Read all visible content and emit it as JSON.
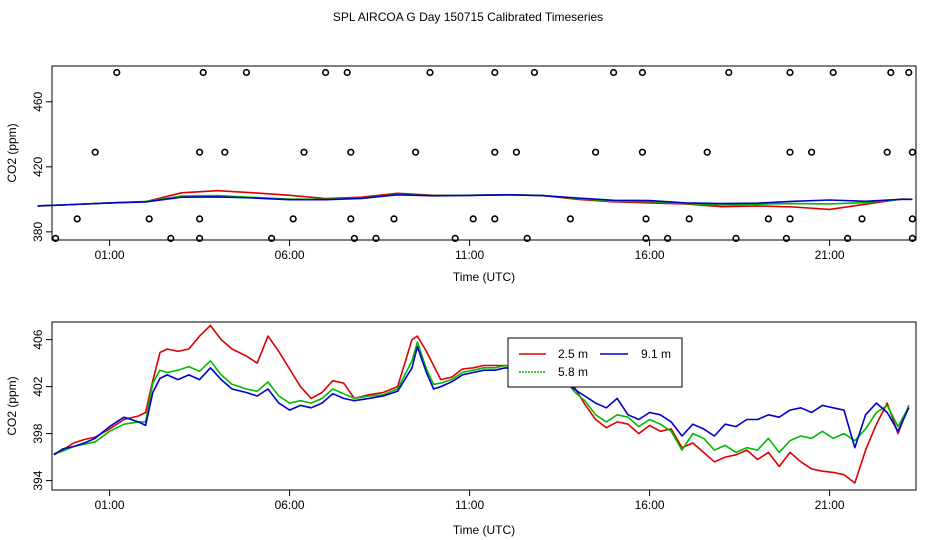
{
  "title": "SPL AIRCOA G  Day 150715  Calibrated Timeseries",
  "colors": {
    "s1": "#dd0000",
    "s2": "#00bb00",
    "s3": "#0000cc"
  },
  "chart_data": [
    {
      "type": "line+scatter",
      "xlabel": "Time (UTC)",
      "ylabel": "CO2 (ppm)",
      "xlim": [
        -0.6,
        23.4
      ],
      "ylim": [
        375,
        482
      ],
      "xticks": [
        1,
        6,
        11,
        16,
        21
      ],
      "xticklabels": [
        "01:00",
        "06:00",
        "11:00",
        "16:00",
        "21:00"
      ],
      "yticks": [
        380,
        420,
        460
      ],
      "yticklabels": [
        "380",
        "420",
        "460"
      ],
      "scatter_markers": [
        [
          1.2,
          478
        ],
        [
          3.6,
          478
        ],
        [
          4.8,
          478
        ],
        [
          7.0,
          478
        ],
        [
          7.6,
          478
        ],
        [
          9.9,
          478
        ],
        [
          11.7,
          478
        ],
        [
          12.8,
          478
        ],
        [
          15.0,
          478
        ],
        [
          15.8,
          478
        ],
        [
          18.2,
          478
        ],
        [
          19.9,
          478
        ],
        [
          21.1,
          478
        ],
        [
          22.7,
          478
        ],
        [
          23.2,
          478
        ],
        [
          0.6,
          429
        ],
        [
          3.5,
          429
        ],
        [
          4.2,
          429
        ],
        [
          6.4,
          429
        ],
        [
          7.7,
          429
        ],
        [
          9.5,
          429
        ],
        [
          11.7,
          429
        ],
        [
          12.3,
          429
        ],
        [
          14.5,
          429
        ],
        [
          15.8,
          429
        ],
        [
          17.6,
          429
        ],
        [
          19.9,
          429
        ],
        [
          20.5,
          429
        ],
        [
          22.6,
          429
        ],
        [
          23.3,
          429
        ],
        [
          0.1,
          388
        ],
        [
          2.1,
          388
        ],
        [
          3.5,
          388
        ],
        [
          6.1,
          388
        ],
        [
          7.7,
          388
        ],
        [
          8.9,
          388
        ],
        [
          11.1,
          388
        ],
        [
          11.7,
          388
        ],
        [
          13.8,
          388
        ],
        [
          15.9,
          388
        ],
        [
          17.1,
          388
        ],
        [
          19.3,
          388
        ],
        [
          19.9,
          388
        ],
        [
          21.9,
          388
        ],
        [
          23.3,
          388
        ],
        [
          -0.5,
          376
        ],
        [
          2.7,
          376
        ],
        [
          3.5,
          376
        ],
        [
          5.5,
          376
        ],
        [
          7.8,
          376
        ],
        [
          8.4,
          376
        ],
        [
          10.6,
          376
        ],
        [
          12.6,
          376
        ],
        [
          15.9,
          376
        ],
        [
          16.5,
          376
        ],
        [
          18.4,
          376
        ],
        [
          19.8,
          376
        ],
        [
          21.5,
          376
        ],
        [
          23.3,
          376
        ]
      ],
      "series": [
        {
          "name": "2.5 m",
          "color": "#dd0000",
          "x": [
            -1,
            0,
            1,
            2,
            3,
            4,
            5,
            6,
            7,
            8,
            9,
            10,
            11,
            12,
            13,
            14,
            15,
            16,
            17,
            18,
            19,
            20,
            21,
            22,
            23,
            23.3
          ],
          "values": [
            396,
            396.8,
            397.8,
            398.6,
            404,
            405.3,
            404,
            402.5,
            400.5,
            401.3,
            403.7,
            402.5,
            402.5,
            402.8,
            402.4,
            400,
            398.5,
            397.8,
            397.2,
            395.5,
            396,
            395.3,
            393.8,
            397,
            400.2,
            400
          ]
        },
        {
          "name": "5.8 m",
          "color": "#00bb00",
          "x": [
            -1,
            0,
            1,
            2,
            3,
            4,
            5,
            6,
            7,
            8,
            9,
            10,
            11,
            12,
            13,
            14,
            15,
            16,
            17,
            18,
            19,
            20,
            21,
            22,
            23,
            23.3
          ],
          "values": [
            396,
            396.8,
            397.8,
            398.6,
            402,
            402.3,
            401.2,
            400.2,
            400,
            400.8,
            403,
            402.3,
            402.5,
            402.8,
            402.4,
            400.6,
            398.8,
            398.6,
            397.4,
            396.5,
            397,
            397.4,
            397.2,
            398,
            400,
            400
          ]
        },
        {
          "name": "9.1 m",
          "color": "#0000cc",
          "x": [
            -1,
            0,
            1,
            2,
            3,
            4,
            5,
            6,
            7,
            8,
            9,
            10,
            11,
            12,
            13,
            14,
            15,
            16,
            17,
            18,
            19,
            20,
            21,
            22,
            23,
            23.3
          ],
          "values": [
            396,
            396.8,
            397.8,
            398.4,
            401.3,
            401.5,
            400.8,
            399.8,
            399.8,
            400.6,
            402.8,
            402.2,
            402.4,
            402.8,
            402.3,
            400.8,
            399.4,
            399.2,
            397.8,
            397.4,
            397.6,
            398.8,
            399.6,
            398.8,
            400,
            400
          ]
        }
      ]
    },
    {
      "type": "line",
      "xlabel": "Time (UTC)",
      "ylabel": "CO2 (ppm)",
      "xlim": [
        -0.6,
        23.4
      ],
      "ylim": [
        393.2,
        407.5
      ],
      "xticks": [
        1,
        6,
        11,
        16,
        21
      ],
      "xticklabels": [
        "01:00",
        "06:00",
        "11:00",
        "16:00",
        "21:00"
      ],
      "yticks": [
        394,
        398,
        402,
        406
      ],
      "yticklabels": [
        "394",
        "398",
        "402",
        "406"
      ],
      "legend": [
        "2.5 m",
        "5.8 m",
        "9.1 m"
      ],
      "series": [
        {
          "name": "2.5 m",
          "color": "#dd0000",
          "x": [
            -0.55,
            -0.3,
            0,
            0.3,
            0.6,
            1.0,
            1.4,
            1.8,
            2.0,
            2.2,
            2.4,
            2.6,
            2.9,
            3.2,
            3.5,
            3.8,
            4.1,
            4.4,
            4.8,
            5.1,
            5.4,
            5.7,
            6.0,
            6.3,
            6.6,
            6.9,
            7.2,
            7.5,
            7.8,
            8.2,
            8.6,
            9.0,
            9.4,
            9.55,
            9.8,
            10.0,
            10.2,
            10.5,
            10.8,
            11.1,
            11.4,
            11.7,
            12.0,
            12.3,
            12.6,
            13.0,
            13.3,
            13.6,
            13.9,
            14.2,
            14.5,
            14.8,
            15.1,
            15.4,
            15.7,
            16.0,
            16.3,
            16.6,
            16.9,
            17.2,
            17.5,
            17.8,
            18.1,
            18.4,
            18.7,
            19.0,
            19.3,
            19.6,
            19.9,
            20.2,
            20.5,
            20.8,
            21.1,
            21.4,
            21.7,
            22.0,
            22.3,
            22.6,
            22.9,
            23.2
          ],
          "values": [
            396.2,
            396.6,
            397.2,
            397.5,
            397.7,
            398.4,
            399.2,
            399.5,
            399.8,
            402.5,
            404.9,
            405.2,
            405.0,
            405.2,
            406.3,
            407.2,
            406.0,
            405.2,
            404.6,
            404.0,
            406.3,
            405.0,
            403.5,
            402.0,
            401.0,
            401.5,
            402.5,
            402.3,
            401.0,
            401.3,
            401.5,
            402.0,
            406.0,
            406.3,
            405.0,
            403.8,
            402.6,
            402.8,
            403.5,
            403.6,
            403.8,
            403.8,
            403.8,
            403.6,
            403.8,
            403.6,
            403.4,
            402.8,
            402.0,
            400.5,
            399.2,
            398.5,
            399.0,
            398.8,
            398.0,
            398.7,
            398.2,
            398.4,
            396.8,
            397.2,
            396.4,
            395.6,
            396.0,
            396.2,
            396.6,
            395.8,
            396.4,
            395.2,
            396.4,
            395.6,
            395.0,
            394.8,
            394.7,
            394.5,
            393.8,
            396.6,
            398.8,
            400.6,
            398.0,
            400.4
          ]
        },
        {
          "name": "5.8 m",
          "color": "#00bb00",
          "x": [
            -0.55,
            -0.3,
            0,
            0.3,
            0.6,
            1.0,
            1.4,
            1.8,
            2.0,
            2.2,
            2.4,
            2.6,
            2.9,
            3.2,
            3.5,
            3.8,
            4.1,
            4.4,
            4.8,
            5.1,
            5.4,
            5.7,
            6.0,
            6.3,
            6.6,
            6.9,
            7.2,
            7.5,
            7.8,
            8.2,
            8.6,
            9.0,
            9.4,
            9.55,
            9.8,
            10.0,
            10.2,
            10.5,
            10.8,
            11.1,
            11.4,
            11.7,
            12.0,
            12.3,
            12.6,
            13.0,
            13.3,
            13.6,
            13.9,
            14.2,
            14.5,
            14.8,
            15.1,
            15.4,
            15.7,
            16.0,
            16.3,
            16.6,
            16.9,
            17.2,
            17.5,
            17.8,
            18.1,
            18.4,
            18.7,
            19.0,
            19.3,
            19.6,
            19.9,
            20.2,
            20.5,
            20.8,
            21.1,
            21.4,
            21.7,
            22.0,
            22.3,
            22.6,
            22.9,
            23.2
          ],
          "values": [
            396.3,
            396.5,
            396.9,
            397.1,
            397.3,
            398.2,
            398.8,
            399.0,
            399.0,
            402.3,
            403.4,
            403.2,
            403.4,
            403.7,
            403.3,
            404.2,
            403.0,
            402.2,
            401.8,
            401.6,
            402.4,
            401.2,
            400.6,
            400.8,
            400.6,
            401.0,
            401.8,
            401.4,
            401.0,
            401.2,
            401.3,
            401.8,
            404.2,
            405.8,
            403.5,
            402.2,
            402.3,
            402.6,
            403.2,
            403.4,
            403.6,
            403.6,
            403.8,
            403.6,
            403.6,
            403.4,
            403.2,
            402.8,
            401.6,
            400.8,
            399.6,
            399.0,
            399.6,
            399.4,
            398.6,
            399.2,
            398.8,
            398.2,
            396.6,
            398.0,
            397.6,
            396.6,
            397.0,
            396.4,
            396.8,
            396.6,
            397.6,
            396.4,
            397.4,
            397.8,
            397.6,
            398.2,
            397.6,
            398.0,
            397.4,
            398.4,
            399.8,
            400.4,
            398.6,
            400.3
          ]
        },
        {
          "name": "9.1 m",
          "color": "#0000cc",
          "x": [
            -0.55,
            -0.3,
            0,
            0.3,
            0.6,
            1.0,
            1.4,
            1.8,
            2.0,
            2.2,
            2.4,
            2.6,
            2.9,
            3.2,
            3.5,
            3.8,
            4.1,
            4.4,
            4.8,
            5.1,
            5.4,
            5.7,
            6.0,
            6.3,
            6.6,
            6.9,
            7.2,
            7.5,
            7.8,
            8.2,
            8.6,
            9.0,
            9.4,
            9.55,
            9.8,
            10.0,
            10.2,
            10.5,
            10.8,
            11.1,
            11.4,
            11.7,
            12.0,
            12.3,
            12.6,
            13.0,
            13.3,
            13.6,
            13.9,
            14.2,
            14.5,
            14.8,
            15.1,
            15.4,
            15.7,
            16.0,
            16.3,
            16.6,
            16.9,
            17.2,
            17.5,
            17.8,
            18.1,
            18.4,
            18.7,
            19.0,
            19.3,
            19.6,
            19.9,
            20.2,
            20.5,
            20.8,
            21.1,
            21.4,
            21.7,
            22.0,
            22.3,
            22.6,
            22.9,
            23.2
          ],
          "values": [
            396.2,
            396.7,
            396.9,
            397.2,
            397.6,
            398.6,
            399.4,
            399.0,
            398.7,
            401.5,
            402.7,
            403.0,
            402.6,
            403.0,
            402.6,
            403.6,
            402.6,
            401.8,
            401.5,
            401.2,
            401.8,
            400.6,
            400.0,
            400.4,
            400.2,
            400.6,
            401.4,
            401.0,
            400.8,
            401.0,
            401.2,
            401.6,
            403.6,
            405.4,
            403.2,
            401.8,
            402.0,
            402.4,
            403.0,
            403.2,
            403.4,
            403.4,
            403.6,
            403.4,
            403.4,
            403.2,
            403.0,
            402.6,
            401.8,
            401.2,
            400.6,
            400.2,
            401.0,
            399.6,
            399.2,
            399.8,
            399.6,
            399.0,
            397.8,
            398.8,
            398.4,
            397.8,
            398.8,
            398.6,
            399.2,
            399.2,
            399.6,
            399.4,
            400.0,
            400.2,
            399.8,
            400.4,
            400.2,
            400.0,
            396.8,
            399.6,
            400.6,
            399.8,
            398.2,
            400.2
          ]
        }
      ]
    }
  ]
}
